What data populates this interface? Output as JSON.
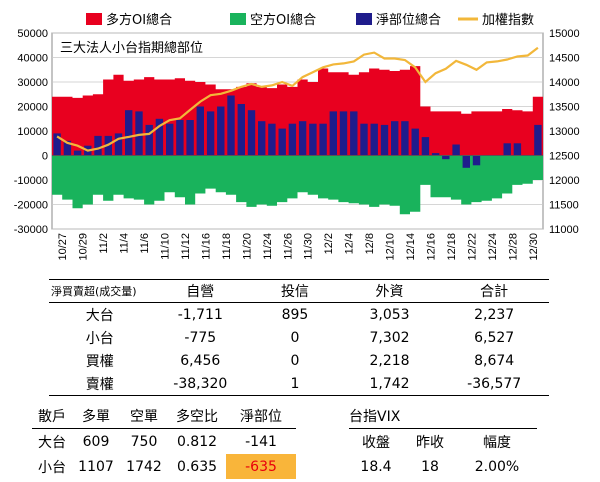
{
  "chart_data": {
    "type": "bar",
    "title": "三大法人小台指期總部位",
    "legend": [
      "多方OI總合",
      "空方OI總合",
      "淨部位總合",
      "加權指數"
    ],
    "legend_placement": "top",
    "colors": {
      "long": "#e8001f",
      "short": "#19b35c",
      "net": "#1f1c8c",
      "index": "#f2b73a"
    },
    "x_tick_labels": [
      "10/27",
      "10/29",
      "11/2",
      "11/4",
      "11/6",
      "11/10",
      "11/12",
      "11/16",
      "11/18",
      "11/20",
      "11/24",
      "11/26",
      "11/30",
      "12/2",
      "12/4",
      "12/8",
      "12/10",
      "12/14",
      "12/16",
      "12/18",
      "12/22",
      "12/24",
      "12/28",
      "12/30"
    ],
    "left_ticks": [
      "50000",
      "40000",
      "30000",
      "20000",
      "10000",
      "0",
      "-10000",
      "-20000",
      "-30000"
    ],
    "right_ticks": [
      "15000",
      "14500",
      "14000",
      "13500",
      "13000",
      "12500",
      "12000",
      "11500",
      "11000"
    ],
    "ylim_left": [
      -30000,
      50000
    ],
    "ylim_right": [
      11000,
      15000
    ],
    "grid": true,
    "long_oi": [
      24000,
      24000,
      23500,
      24500,
      25000,
      31000,
      33000,
      30500,
      31000,
      32000,
      31000,
      31000,
      31500,
      30500,
      30000,
      29000,
      27000,
      27000,
      28000,
      29500,
      28000,
      27500,
      29000,
      28000,
      31000,
      30000,
      35500,
      34000,
      34000,
      33000,
      34000,
      35500,
      35000,
      34500,
      35000,
      36500,
      20000,
      18000,
      18000,
      18000,
      17000,
      18000,
      18000,
      18000,
      19000,
      18500,
      18000,
      24000
    ],
    "short_oi": [
      -16000,
      -18000,
      -21500,
      -20000,
      -16000,
      -18500,
      -16000,
      -17500,
      -18000,
      -20000,
      -18500,
      -15000,
      -17000,
      -20000,
      -15500,
      -13500,
      -15000,
      -16000,
      -19000,
      -21000,
      -20000,
      -20500,
      -19000,
      -17500,
      -15000,
      -16000,
      -17500,
      -18000,
      -19000,
      -19500,
      -20000,
      -21000,
      -20000,
      -20500,
      -24000,
      -23000,
      -12000,
      -17000,
      -17000,
      -18000,
      -20000,
      -19000,
      -18500,
      -17500,
      -15500,
      -12000,
      -11500,
      -10000
    ],
    "net": [
      9000,
      6000,
      2000,
      4000,
      8000,
      8000,
      9000,
      18500,
      18000,
      12500,
      15000,
      13000,
      14500,
      14500,
      20000,
      18000,
      20000,
      24500,
      21000,
      18500,
      14000,
      13000,
      11000,
      13000,
      14000,
      13000,
      13000,
      18000,
      18000,
      18000,
      13000,
      13000,
      12500,
      14000,
      14000,
      11000,
      7500,
      1000,
      -1500,
      4500,
      -5000,
      -4000,
      0,
      0,
      5000,
      5000,
      0,
      12500
    ],
    "index": [
      12890,
      12760,
      12700,
      12600,
      12640,
      12720,
      12840,
      12880,
      12920,
      12940,
      13100,
      13220,
      13260,
      13430,
      13600,
      13730,
      13760,
      13820,
      13900,
      13960,
      13900,
      13930,
      14000,
      13920,
      14100,
      14200,
      14300,
      14360,
      14380,
      14420,
      14560,
      14600,
      14480,
      14480,
      14450,
      14300,
      14000,
      14180,
      14270,
      14430,
      14350,
      14250,
      14400,
      14420,
      14460,
      14520,
      14540,
      14700
    ]
  },
  "trade_table": {
    "headers": [
      "淨買賣超(成交量)",
      "自營",
      "投信",
      "外資",
      "合計"
    ],
    "rows": [
      [
        "大台",
        "-1,711",
        "895",
        "3,053",
        "2,237"
      ],
      [
        "小台",
        "-775",
        "0",
        "7,302",
        "6,527"
      ],
      [
        "買權",
        "6,456",
        "0",
        "2,218",
        "8,674"
      ],
      [
        "賣權",
        "-38,320",
        "1",
        "1,742",
        "-36,577"
      ]
    ]
  },
  "retail_table": {
    "headers": [
      "散戶",
      "多單",
      "空單",
      "多空比",
      "淨部位"
    ],
    "rows": [
      [
        "大台",
        "609",
        "750",
        "0.812",
        "-141"
      ],
      [
        "小台",
        "1107",
        "1742",
        "0.635",
        "-635"
      ]
    ]
  },
  "vix_table": {
    "title": "台指VIX",
    "headers": [
      "收盤",
      "昨收",
      "幅度"
    ],
    "values": [
      "18.4",
      "18",
      "2.00%"
    ]
  }
}
